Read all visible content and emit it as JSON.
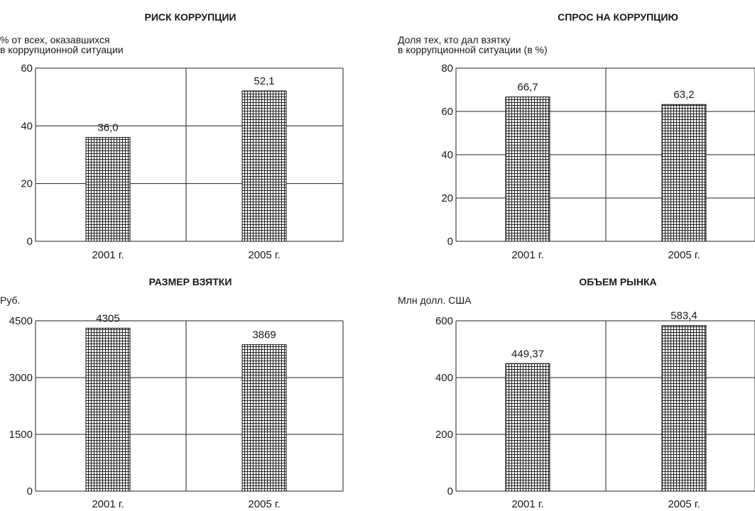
{
  "chart_data": [
    {
      "type": "bar",
      "title": "РИСК КОРРУПЦИИ",
      "ylabel": [
        "% от всех, оказавшихся",
        "в коррупционной ситуации"
      ],
      "categories": [
        "2001 г.",
        "2005 г."
      ],
      "values": [
        36.0,
        52.1
      ],
      "value_labels": [
        "36,0",
        "52,1"
      ],
      "ylim": [
        0,
        60
      ],
      "yticks": [
        0,
        20,
        40,
        60
      ],
      "ytick_labels": [
        "0",
        "20",
        "40",
        "60"
      ],
      "grid": true,
      "bar_fill": "crosshatch"
    },
    {
      "type": "bar",
      "title": "СПРОС НА КОРРУПЦИЮ",
      "ylabel": [
        "Доля тех, кто дал взятку",
        "в коррупционной ситуации (в %)"
      ],
      "categories": [
        "2001 г.",
        "2005 г."
      ],
      "values": [
        66.7,
        63.2
      ],
      "value_labels": [
        "66,7",
        "63,2"
      ],
      "ylim": [
        0,
        80
      ],
      "yticks": [
        0,
        20,
        40,
        60,
        80
      ],
      "ytick_labels": [
        "0",
        "20",
        "40",
        "60",
        "80"
      ],
      "grid": true,
      "bar_fill": "crosshatch"
    },
    {
      "type": "bar",
      "title": "РАЗМЕР ВЗЯТКИ",
      "ylabel": [
        "Руб."
      ],
      "categories": [
        "2001 г.",
        "2005 г."
      ],
      "values": [
        4305,
        3869
      ],
      "value_labels": [
        "4305",
        "3869"
      ],
      "ylim": [
        0,
        4500
      ],
      "yticks": [
        0,
        1500,
        3000,
        4500
      ],
      "ytick_labels": [
        "0",
        "1500",
        "3000",
        "4500"
      ],
      "grid": true,
      "bar_fill": "crosshatch"
    },
    {
      "type": "bar",
      "title": "ОБЪЕМ РЫНКА",
      "ylabel": [
        "Млн долл. США"
      ],
      "categories": [
        "2001 г.",
        "2005 г."
      ],
      "values": [
        449.37,
        583.4
      ],
      "value_labels": [
        "449,37",
        "583,4"
      ],
      "ylim": [
        0,
        600
      ],
      "yticks": [
        0,
        200,
        400,
        600
      ],
      "ytick_labels": [
        "0",
        "200",
        "400",
        "600"
      ],
      "grid": true,
      "bar_fill": "crosshatch"
    }
  ]
}
